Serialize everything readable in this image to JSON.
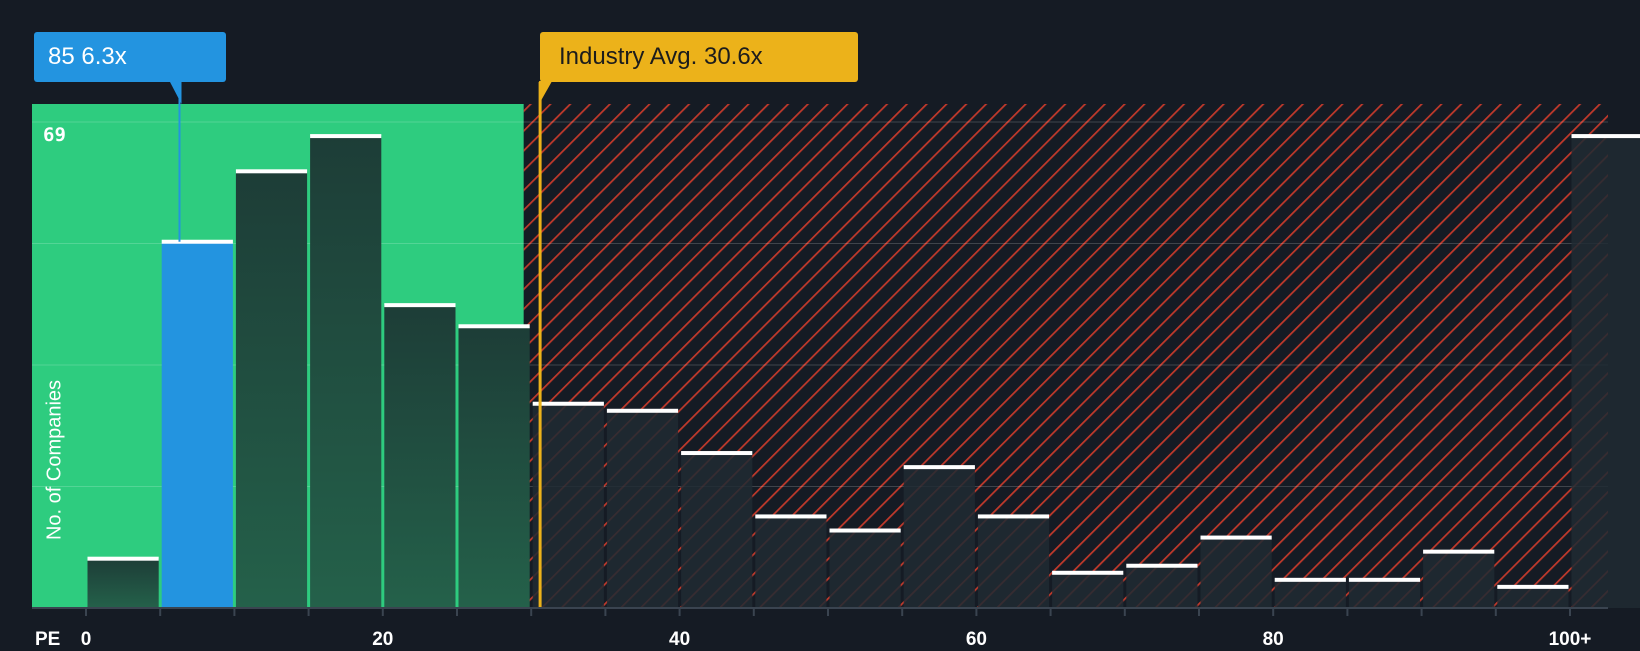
{
  "company_callout": {
    "text": "85 6.3x"
  },
  "industry_callout": {
    "text": "Industry Avg. 30.6x"
  },
  "colors": {
    "background": "#151b24",
    "fair_zone": "#2ecc7f",
    "overvalued_zone": "#c0392b",
    "highlight_bar": "#2394e0",
    "industry_line": "#ecb21a"
  },
  "chart_data": {
    "type": "bar",
    "title": "",
    "xlabel": "PE",
    "ylabel": "No. of Companies",
    "x_tick_labels": [
      "0",
      "20",
      "40",
      "60",
      "80",
      "100+"
    ],
    "x_ticks": [
      0,
      20,
      40,
      60,
      80,
      100
    ],
    "y_max_label": "69",
    "ylim": [
      0,
      69
    ],
    "xlim": [
      0,
      102.5
    ],
    "bin_width": 5,
    "bins": [
      {
        "start": 0,
        "value": 7
      },
      {
        "start": 5,
        "value": 52
      },
      {
        "start": 10,
        "value": 62
      },
      {
        "start": 15,
        "value": 67
      },
      {
        "start": 20,
        "value": 43
      },
      {
        "start": 25,
        "value": 40
      },
      {
        "start": 30,
        "value": 29
      },
      {
        "start": 35,
        "value": 28
      },
      {
        "start": 40,
        "value": 22
      },
      {
        "start": 45,
        "value": 13
      },
      {
        "start": 50,
        "value": 11
      },
      {
        "start": 55,
        "value": 20
      },
      {
        "start": 60,
        "value": 13
      },
      {
        "start": 65,
        "value": 5
      },
      {
        "start": 70,
        "value": 6
      },
      {
        "start": 75,
        "value": 10
      },
      {
        "start": 80,
        "value": 4
      },
      {
        "start": 85,
        "value": 4
      },
      {
        "start": 90,
        "value": 8
      },
      {
        "start": 95,
        "value": 3
      },
      {
        "start": 100,
        "value": 67
      }
    ],
    "highlight_bin_index": 1,
    "company_pe": 6.3,
    "industry_avg": 30.6,
    "fair_zone_end": 29.5,
    "grid": true
  }
}
